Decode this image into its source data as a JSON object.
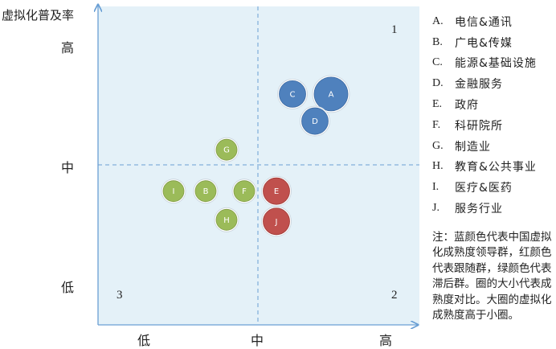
{
  "chart_data": {
    "type": "scatter",
    "title": "",
    "ylabel": "虚拟化普及率",
    "y_ticks": [
      "高",
      "中",
      "低"
    ],
    "x_ticks": [
      "低",
      "中",
      "高"
    ],
    "quadrants": {
      "q1": "1",
      "q2": "2",
      "q3": "3"
    },
    "xlim": [
      0,
      2
    ],
    "ylim": [
      0,
      2
    ],
    "grid": false,
    "legend_position": "right",
    "colors": {
      "blue": "#4f81bd",
      "red": "#c0504d",
      "green": "#9bbb59",
      "plot_bg": "#e4f1f8",
      "axis": "#6a9fd4"
    },
    "points": [
      {
        "label": "A",
        "x": 1.45,
        "y": 1.45,
        "size": "large",
        "group": "blue"
      },
      {
        "label": "C",
        "x": 1.21,
        "y": 1.45,
        "size": "medium",
        "group": "blue"
      },
      {
        "label": "D",
        "x": 1.35,
        "y": 1.28,
        "size": "medium",
        "group": "blue"
      },
      {
        "label": "G",
        "x": 0.8,
        "y": 1.1,
        "size": "small",
        "group": "green"
      },
      {
        "label": "I",
        "x": 0.47,
        "y": 0.84,
        "size": "small",
        "group": "green"
      },
      {
        "label": "B",
        "x": 0.67,
        "y": 0.84,
        "size": "small",
        "group": "green"
      },
      {
        "label": "F",
        "x": 0.91,
        "y": 0.84,
        "size": "small",
        "group": "green"
      },
      {
        "label": "E",
        "x": 1.11,
        "y": 0.84,
        "size": "medium",
        "group": "red"
      },
      {
        "label": "H",
        "x": 0.8,
        "y": 0.66,
        "size": "small",
        "group": "green"
      },
      {
        "label": "J",
        "x": 1.11,
        "y": 0.65,
        "size": "medium",
        "group": "red"
      }
    ]
  },
  "legend": [
    {
      "key": "A.",
      "text": "电信&通讯"
    },
    {
      "key": "B.",
      "text": "广电&传媒"
    },
    {
      "key": "C.",
      "text": "能源&基础设施"
    },
    {
      "key": "D.",
      "text": "金融服务"
    },
    {
      "key": "E.",
      "text": "政府"
    },
    {
      "key": "F.",
      "text": "科研院所"
    },
    {
      "key": "G.",
      "text": "制造业"
    },
    {
      "key": "H.",
      "text": "教育&公共事业"
    },
    {
      "key": "I.",
      "text": "医疗&医药"
    },
    {
      "key": "J.",
      "text": "服务行业"
    }
  ],
  "note": "注：蓝颜色代表中国虚拟化成熟度领导群，红颜色代表跟随群，绿颜色代表滞后群。圈的大小代表成熟度对比。大圈的虚拟化成熟度高于小圈。"
}
